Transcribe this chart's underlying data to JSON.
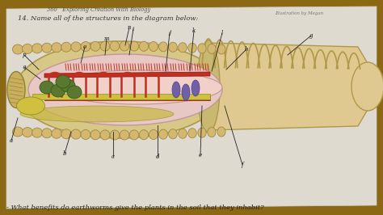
{
  "bg_color": "#8B6914",
  "page_bg": "#dedad0",
  "title_line1": "360   Exploring Creation With Biology",
  "title_line2": "14. Name all of the structures in the diagram below:",
  "bottom_text": "- What benefits do earthworms give the plants in the soil that they inhabit?",
  "illustration_credit": "Illustration by Megan",
  "seg_color": "#d4b87a",
  "seg_edge": "#a08840",
  "tube_color": "#dfc990",
  "tube_edge": "#b09848",
  "inner_color": "#e8c8c4",
  "inner_edge": "#c09898",
  "dorsal_color": "#c03020",
  "nerve_color": "#d4c040",
  "green_color": "#5a7830",
  "green_edge": "#3a5818",
  "yellow_color": "#ccc040",
  "yellow_edge": "#909010",
  "purple_color": "#7060a8",
  "purple_edge": "#504080",
  "label_color": "#222222"
}
